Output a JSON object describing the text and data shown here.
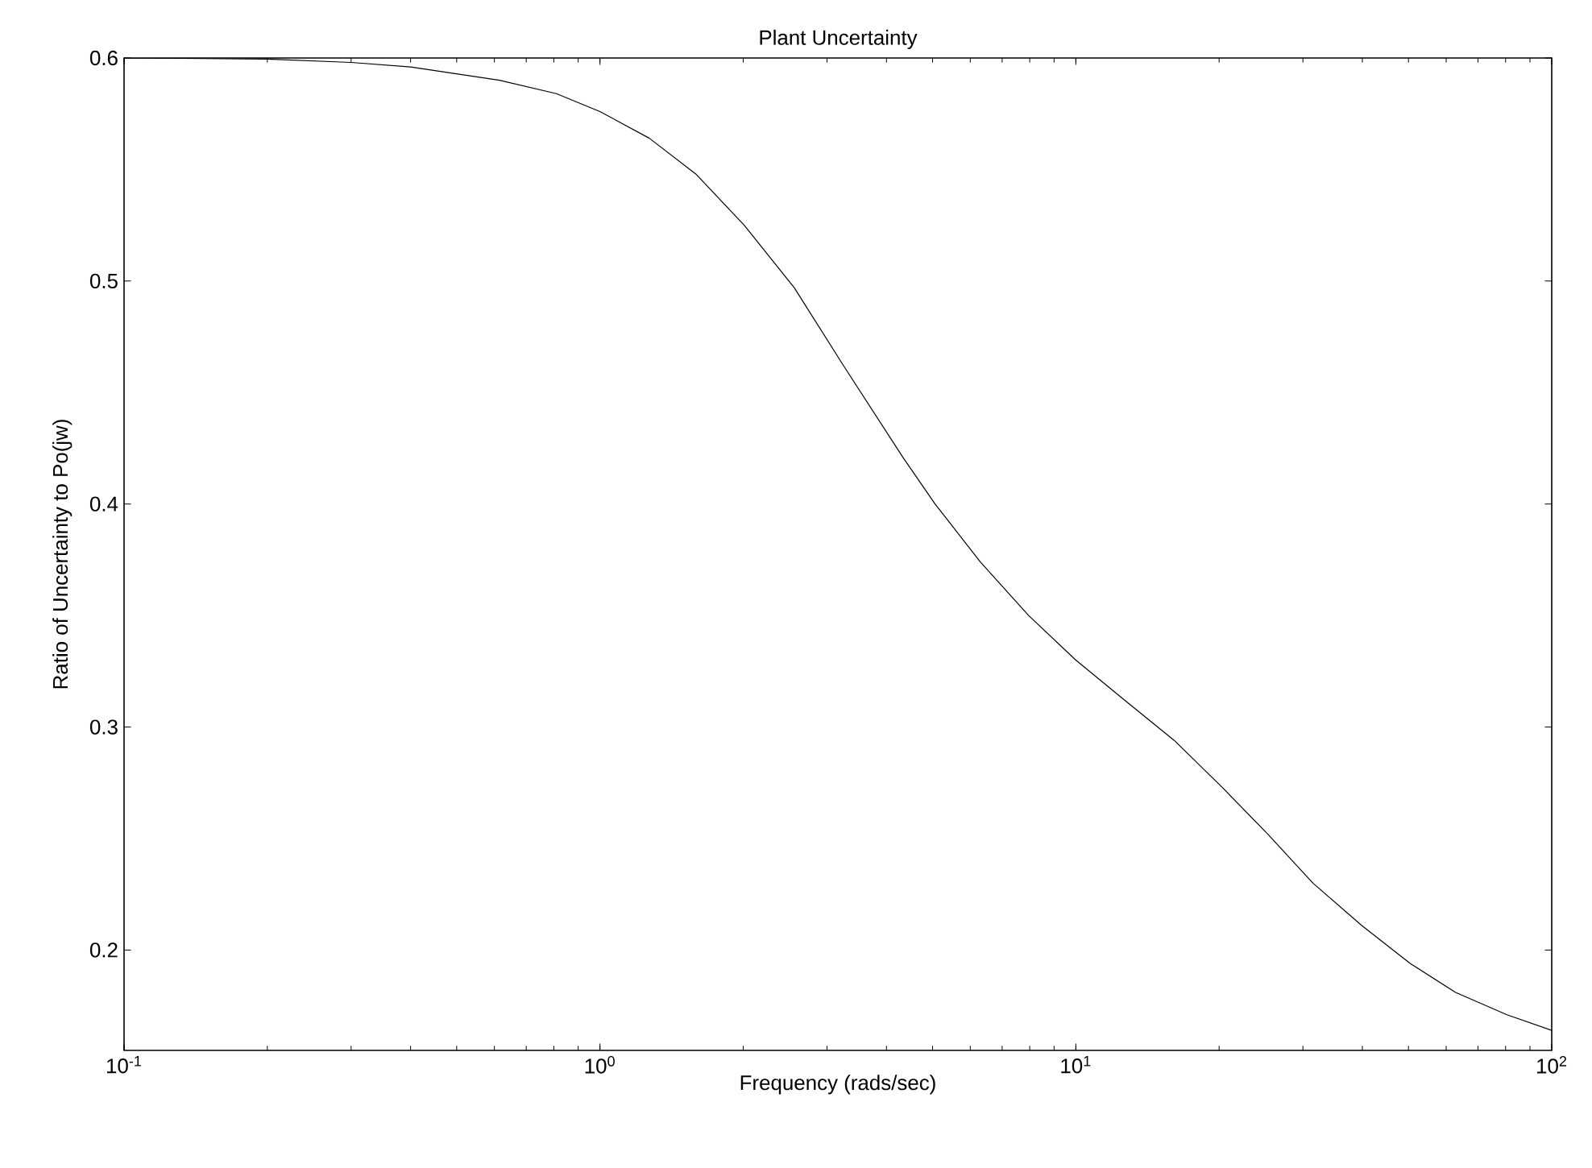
{
  "chart_data": {
    "type": "line",
    "title": "Plant Uncertainty",
    "xlabel": "Frequency (rads/sec)",
    "ylabel": "Ratio of Uncertainty to Po(jw)",
    "log": "x",
    "xlim": [
      0.1,
      100
    ],
    "ylim": [
      0.155,
      0.6
    ],
    "xticks": [
      {
        "value": 0.1,
        "label": "10$^{-1}$"
      },
      {
        "value": 1,
        "label": "10$^{0}$"
      },
      {
        "value": 10,
        "label": "10$^{1}$"
      },
      {
        "value": 100,
        "label": "10$^{2}$"
      }
    ],
    "yticks": [
      0.2,
      0.3,
      0.4,
      0.5,
      0.6
    ],
    "grid": false,
    "series": [
      {
        "color": "#000000",
        "line_style": "solid",
        "x": [
          0.1,
          0.2,
          0.3,
          0.4,
          0.615,
          0.81,
          1,
          1.27,
          1.59,
          2.01,
          2.56,
          3.25,
          4.33,
          5.06,
          6.3,
          7.96,
          10,
          12.5,
          16.1,
          20.3,
          25.3,
          31.5,
          39.9,
          50.4,
          62.8,
          80.5,
          100
        ],
        "values": [
          0.6,
          0.5995,
          0.598,
          0.596,
          0.59,
          0.584,
          0.576,
          0.564,
          0.548,
          0.525,
          0.497,
          0.462,
          0.421,
          0.4,
          0.374,
          0.35,
          0.33,
          0.313,
          0.294,
          0.273,
          0.252,
          0.23,
          0.211,
          0.194,
          0.181,
          0.171,
          0.164
        ]
      }
    ]
  }
}
